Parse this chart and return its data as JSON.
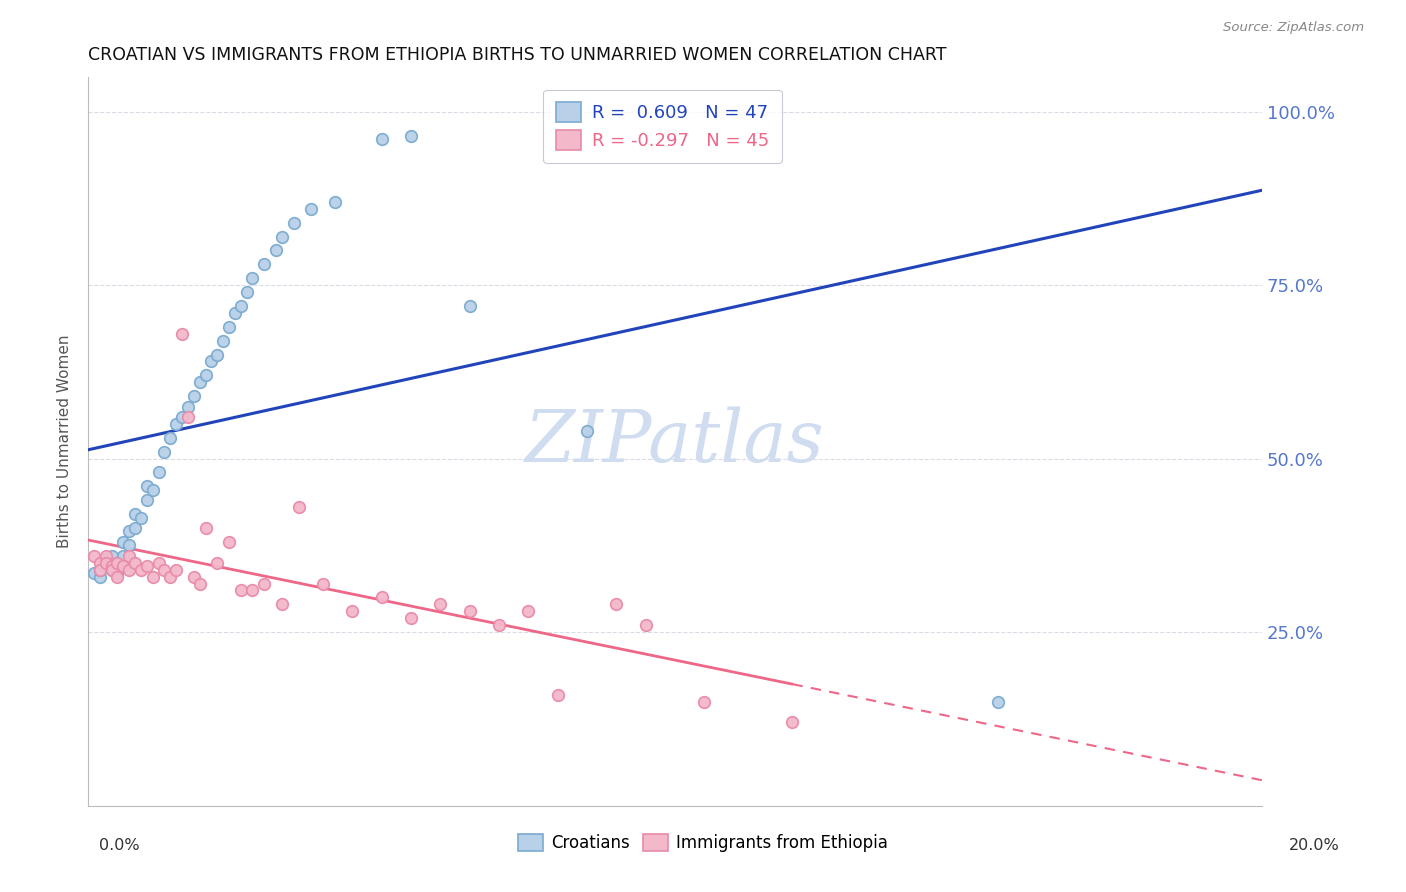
{
  "title": "CROATIAN VS IMMIGRANTS FROM ETHIOPIA BIRTHS TO UNMARRIED WOMEN CORRELATION CHART",
  "source": "Source: ZipAtlas.com",
  "ylabel": "Births to Unmarried Women",
  "legend_croatians": "Croatians",
  "legend_ethiopia": "Immigrants from Ethiopia",
  "r_croatian": 0.609,
  "n_croatian": 47,
  "r_ethiopia": -0.297,
  "n_ethiopia": 45,
  "blue_fill": "#B8D0E8",
  "blue_edge": "#7AAAD0",
  "pink_fill": "#F4B8CB",
  "pink_edge": "#E88AA8",
  "line_blue": "#2244BB",
  "line_pink": "#EE6688",
  "right_label_color": "#5577CC",
  "watermark_color": "#D0DCF0",
  "croatian_x": [
    0.001,
    0.002,
    0.002,
    0.003,
    0.003,
    0.004,
    0.004,
    0.005,
    0.005,
    0.006,
    0.006,
    0.007,
    0.007,
    0.008,
    0.008,
    0.009,
    0.01,
    0.01,
    0.011,
    0.012,
    0.013,
    0.014,
    0.015,
    0.016,
    0.017,
    0.018,
    0.019,
    0.02,
    0.021,
    0.022,
    0.023,
    0.024,
    0.025,
    0.026,
    0.027,
    0.028,
    0.03,
    0.032,
    0.033,
    0.035,
    0.038,
    0.042,
    0.05,
    0.055,
    0.065,
    0.085,
    0.155
  ],
  "croatian_y": [
    0.335,
    0.33,
    0.34,
    0.345,
    0.355,
    0.34,
    0.36,
    0.335,
    0.35,
    0.36,
    0.38,
    0.375,
    0.395,
    0.4,
    0.42,
    0.415,
    0.44,
    0.46,
    0.455,
    0.48,
    0.51,
    0.53,
    0.55,
    0.56,
    0.575,
    0.59,
    0.61,
    0.62,
    0.64,
    0.65,
    0.67,
    0.69,
    0.71,
    0.72,
    0.74,
    0.76,
    0.78,
    0.8,
    0.82,
    0.84,
    0.86,
    0.87,
    0.96,
    0.965,
    0.72,
    0.54,
    0.15
  ],
  "ethiopia_x": [
    0.001,
    0.002,
    0.002,
    0.003,
    0.003,
    0.004,
    0.004,
    0.005,
    0.005,
    0.006,
    0.007,
    0.007,
    0.008,
    0.009,
    0.01,
    0.011,
    0.012,
    0.013,
    0.014,
    0.015,
    0.016,
    0.017,
    0.018,
    0.019,
    0.02,
    0.022,
    0.024,
    0.026,
    0.028,
    0.03,
    0.033,
    0.036,
    0.04,
    0.045,
    0.05,
    0.055,
    0.06,
    0.065,
    0.07,
    0.075,
    0.08,
    0.09,
    0.095,
    0.105,
    0.12
  ],
  "ethiopia_y": [
    0.36,
    0.35,
    0.34,
    0.36,
    0.35,
    0.345,
    0.34,
    0.33,
    0.35,
    0.345,
    0.34,
    0.36,
    0.35,
    0.34,
    0.345,
    0.33,
    0.35,
    0.34,
    0.33,
    0.34,
    0.68,
    0.56,
    0.33,
    0.32,
    0.4,
    0.35,
    0.38,
    0.31,
    0.31,
    0.32,
    0.29,
    0.43,
    0.32,
    0.28,
    0.3,
    0.27,
    0.29,
    0.28,
    0.26,
    0.28,
    0.16,
    0.29,
    0.26,
    0.15,
    0.12
  ],
  "xmin": 0.0,
  "xmax": 0.2,
  "ymin": 0.0,
  "ymax": 1.05,
  "yticks": [
    0.25,
    0.5,
    0.75,
    1.0
  ],
  "ytick_labels": [
    "25.0%",
    "50.0%",
    "75.0%",
    "100.0%"
  ],
  "xticks": [
    0.0,
    0.04,
    0.08,
    0.12,
    0.16,
    0.2
  ],
  "marker_size": 70
}
